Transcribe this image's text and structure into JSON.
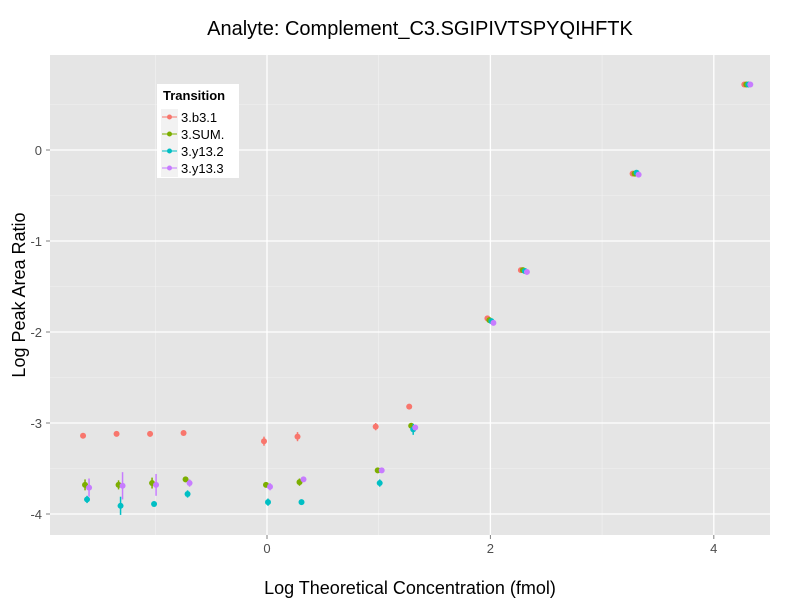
{
  "chart_data": {
    "type": "scatter",
    "title": "Analyte: Complement_C3.SGIPIVTSPYQIHFTK",
    "xlabel": "Log Theoretical Concentration (fmol)",
    "ylabel": "Log Peak Area Ratio",
    "xlim": [
      -1.95,
      4.5
    ],
    "ylim": [
      -4.2,
      1.05
    ],
    "xticks": [
      0,
      2,
      4
    ],
    "yticks": [
      0,
      -1,
      -2,
      -3,
      -4
    ],
    "grid": true,
    "legend": {
      "title": "Transition",
      "placement": "top-left"
    },
    "x": [
      -1.62,
      -1.32,
      -1.02,
      -0.72,
      0,
      0.3,
      1,
      1.3,
      2,
      2.3,
      3.3,
      4.3
    ],
    "series": [
      {
        "name": "3.b3.1",
        "color": "#F8766D",
        "values": [
          -3.14,
          -3.12,
          -3.12,
          -3.11,
          -3.2,
          -3.15,
          -3.04,
          -2.82,
          -1.85,
          -1.32,
          -0.26,
          0.72
        ],
        "errors": [
          0.03,
          0.01,
          0.03,
          0.02,
          0.05,
          0.05,
          0.04,
          0.01,
          0.01,
          0.01,
          0.01,
          0.01
        ]
      },
      {
        "name": "3.SUM.",
        "color": "#7CAE00",
        "values": [
          -3.68,
          -3.68,
          -3.66,
          -3.62,
          -3.68,
          -3.65,
          -3.52,
          -3.03,
          -1.87,
          -1.32,
          -0.26,
          0.72
        ],
        "errors": [
          0.06,
          0.05,
          0.06,
          0.03,
          0.01,
          0.04,
          0.03,
          0.02,
          0.02,
          0.01,
          0.01,
          0.01
        ]
      },
      {
        "name": "3.y13.2",
        "color": "#00BFC4",
        "values": [
          -3.84,
          -3.91,
          -3.89,
          -3.78,
          -3.87,
          -3.87,
          -3.66,
          -3.07,
          -1.88,
          -1.33,
          -0.25,
          0.72
        ],
        "errors": [
          0.04,
          0.1,
          0.01,
          0.04,
          0.04,
          0.03,
          0.04,
          0.06,
          0.02,
          0.01,
          0.01,
          0.01
        ]
      },
      {
        "name": "3.y13.3",
        "color": "#C77CFF",
        "values": [
          -3.71,
          -3.69,
          -3.68,
          -3.66,
          -3.7,
          -3.62,
          -3.52,
          -3.05,
          -1.9,
          -1.34,
          -0.27,
          0.72
        ],
        "errors": [
          0.1,
          0.15,
          0.12,
          0.04,
          0.04,
          0.02,
          0.02,
          0.02,
          0.01,
          0.01,
          0.01,
          0.01
        ]
      }
    ]
  }
}
